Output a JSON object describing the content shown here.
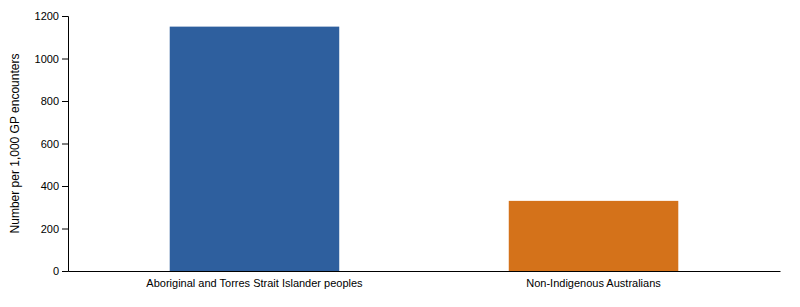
{
  "chart_data": {
    "type": "bar",
    "categories": [
      "Aboriginal and Torres Strait Islander peoples",
      "Non-Indigenous Australians"
    ],
    "values": [
      1150,
      330
    ],
    "colors": [
      "#2E5F9E",
      "#D4721A"
    ],
    "ylabel": "Number per 1,000 GP encounters",
    "ylim": [
      0,
      1200
    ],
    "yticks": [
      0,
      200,
      400,
      600,
      800,
      1000,
      1200
    ],
    "grid": false
  }
}
